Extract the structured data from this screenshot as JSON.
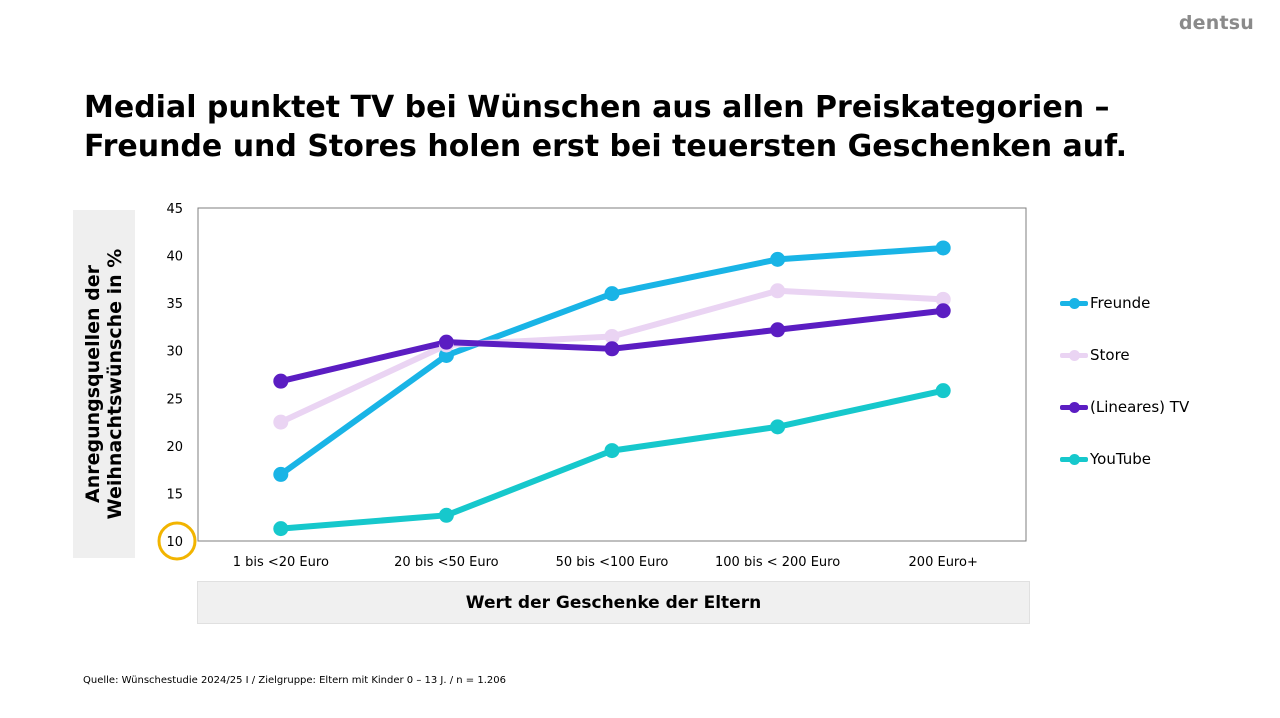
{
  "logo": "dentsu",
  "title": {
    "line1": "Medial punktet TV bei Wünschen aus allen Preiskategorien –",
    "line2": "Freunde und Stores holen erst bei teuersten Geschenken auf."
  },
  "source": "Quelle: Wünschestudie 2024/25 I / Zielgruppe: Eltern mit Kinder 0 – 13 J. / n = 1.206",
  "colors": {
    "freunde": "#19b4e6",
    "store": "#ead4f3",
    "tv": "#5b1dc2",
    "youtube": "#16c8cc",
    "highlight": "#f2b400"
  },
  "chart_data": {
    "type": "line",
    "title": "",
    "xlabel": "Wert der Geschenke der Eltern",
    "ylabel": "Anregungsquellen der Weihnachtswünsche in %",
    "ylim": [
      10,
      45
    ],
    "yticks": [
      10,
      15,
      20,
      25,
      30,
      35,
      40,
      45
    ],
    "categories": [
      "1 bis <20 Euro",
      "20 bis <50 Euro",
      "50 bis <100 Euro",
      "100 bis < 200 Euro",
      "200 Euro+"
    ],
    "grid": false,
    "legend_position": "right",
    "highlighted_tick": 10,
    "series": [
      {
        "name": "Freunde",
        "color": "#19b4e6",
        "values": [
          17.0,
          29.5,
          36.0,
          39.6,
          40.8
        ]
      },
      {
        "name": "Store",
        "color": "#ead4f3",
        "values": [
          22.5,
          30.6,
          31.5,
          36.3,
          35.4
        ]
      },
      {
        "name": "(Lineares) TV",
        "color": "#5b1dc2",
        "values": [
          26.8,
          30.9,
          30.2,
          32.2,
          34.2
        ]
      },
      {
        "name": "YouTube",
        "color": "#16c8cc",
        "values": [
          11.3,
          12.7,
          19.5,
          22.0,
          25.8
        ]
      }
    ]
  }
}
